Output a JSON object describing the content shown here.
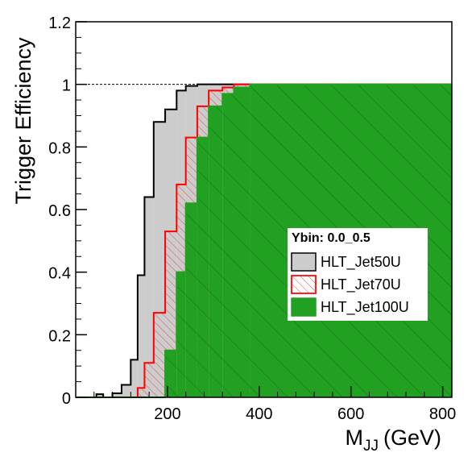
{
  "chart_data": {
    "type": "histogram",
    "y_label": "Trigger Efficiency",
    "x_label": "M",
    "x_label_sub": "JJ",
    "x_label_unit": "(GeV)",
    "legend_title": "Ybin: 0.0_0.5",
    "legend_position": "right",
    "reference_line": 1,
    "bins": [
      0,
      45,
      60,
      80,
      100,
      120,
      135,
      150,
      170,
      195,
      220,
      240,
      265,
      290,
      320,
      345,
      380,
      820
    ],
    "series": [
      {
        "name": "HLT_Jet50U",
        "color": "#000000",
        "fill": "#cccccc",
        "hatch": false,
        "values": [
          0,
          0.01,
          0,
          0.013,
          0.04,
          0.12,
          0.39,
          0.64,
          0.88,
          0.92,
          0.98,
          0.995,
          1,
          1,
          1,
          1,
          1
        ]
      },
      {
        "name": "HLT_Jet70U",
        "color": "#ff0000",
        "fill": "#c06060",
        "hatch": true,
        "values": [
          0,
          0,
          0,
          0,
          0,
          0,
          0.03,
          0.11,
          0.27,
          0.53,
          0.68,
          0.83,
          0.93,
          0.98,
          0.99,
          1,
          1
        ]
      },
      {
        "name": "HLT_Jet100U",
        "color": "#22a022",
        "fill": "#22a022",
        "hatch": false,
        "values": [
          0,
          0,
          0,
          0,
          0,
          0,
          0,
          0,
          0,
          0.15,
          0.4,
          0.62,
          0.83,
          0.93,
          0.97,
          0.99,
          1
        ]
      }
    ],
    "xlim": [
      0,
      820
    ],
    "ylim": [
      0,
      1.2
    ],
    "xticks": [
      200,
      400,
      600,
      800
    ],
    "yticks": [
      0,
      0.2,
      0.4,
      0.6,
      0.8,
      1,
      1.2
    ]
  }
}
